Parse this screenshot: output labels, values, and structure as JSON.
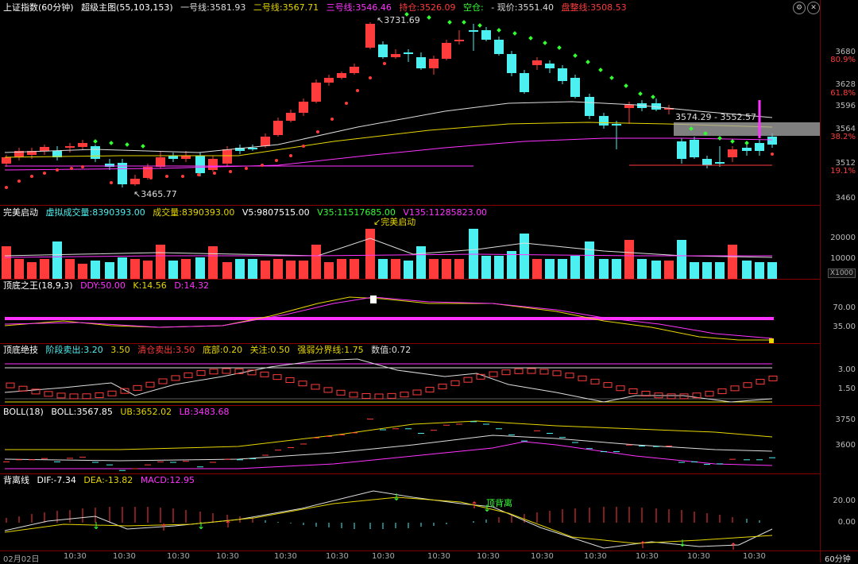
{
  "main": {
    "index_name": "上证指数(60分钟)",
    "indicator_name": "超级主图(55,103,153)",
    "line1_label": "一号线:",
    "line1_value": "3581.93",
    "line2_label": "二号线:",
    "line2_value": "3567.71",
    "line3_label": "三号线:",
    "line3_value": "3546.46",
    "hold_label": "持仓:",
    "hold_value": "3526.09",
    "empty_label": "空仓:",
    "price_label": "现价:",
    "price_value": "3551.40",
    "trend_label": "盘整线:",
    "trend_value": "3508.53",
    "high_label": "3731.69",
    "low_label": "3465.77",
    "range_label": "3574.29 - 3552.57",
    "axis": [
      {
        "v": "3680",
        "red": false
      },
      {
        "v": "80.9%",
        "red": true
      },
      {
        "v": "3628",
        "red": false
      },
      {
        "v": "61.8%",
        "red": true
      },
      {
        "v": "3596",
        "red": false
      },
      {
        "v": "3564",
        "red": false
      },
      {
        "v": "38.2%",
        "red": true
      },
      {
        "v": "3512",
        "red": false
      },
      {
        "v": "19.1%",
        "red": true
      },
      {
        "v": "3460",
        "red": false
      }
    ]
  },
  "vol": {
    "name": "完美启动",
    "virtual_label": "虚拟成交量:",
    "virtual_value": "8390393.00",
    "vol_label": "成交量:",
    "vol_value": "8390393.00",
    "v5_label": "V5:",
    "v5_value": "9807515.00",
    "v35_label": "V35:",
    "v35_value": "11517685.00",
    "v135_label": "V135:",
    "v135_value": "11285823.00",
    "annotation": "完美启动",
    "axis": [
      "20000",
      "10000"
    ],
    "unit": "X1000"
  },
  "kdj": {
    "name": "顶底之王(18,9,3)",
    "ddy_label": "DDY:",
    "ddy_value": "50.00",
    "k_label": "K:",
    "k_value": "14.56",
    "d_label": "D:",
    "d_value": "14.32",
    "axis": [
      "70.00",
      "35.00"
    ]
  },
  "tech": {
    "name": "顶底绝技",
    "stage_label": "阶段卖出:",
    "stage_value": "3.20",
    "stage_value2": "3.50",
    "clear_label": "清仓卖出:",
    "clear_value": "3.50",
    "bottom_label": "底部:",
    "bottom_value": "0.20",
    "focus_label": "关注:",
    "focus_value": "0.50",
    "strength_label": "强弱分界线:",
    "strength_value": "1.75",
    "num_label": "数值:",
    "num_value": "0.72",
    "axis": [
      "3.00",
      "1.50"
    ]
  },
  "boll": {
    "name": "BOLL(18)",
    "boll_label": "BOLL:",
    "boll_value": "3567.85",
    "ub_label": "UB:",
    "ub_value": "3652.02",
    "lb_label": "LB:",
    "lb_value": "3483.68",
    "axis": [
      "3750",
      "3600"
    ]
  },
  "macd": {
    "name": "背离线",
    "dif_label": "DIF:",
    "dif_value": "-7.34",
    "dea_label": "DEA:",
    "dea_value": "-13.82",
    "macd_label": "MACD:",
    "macd_value": "12.95",
    "annotation": "顶背离",
    "axis": [
      "20.00",
      "0.00"
    ]
  },
  "timeaxis": {
    "labels": [
      "02月02日",
      "10:30",
      "10:30",
      "10:30",
      "10:30",
      "10:30",
      "10:30",
      "10:30",
      "10:30",
      "10:30",
      "10:30",
      "10:30",
      "10:30",
      "10:30",
      "10:30",
      "10:30"
    ],
    "period": "60分钟"
  },
  "colors": {
    "up": "#ff3b3b",
    "down": "#4df0f0",
    "magenta": "#ff33ff",
    "yellow": "#e6d600",
    "green": "#33ff33"
  }
}
